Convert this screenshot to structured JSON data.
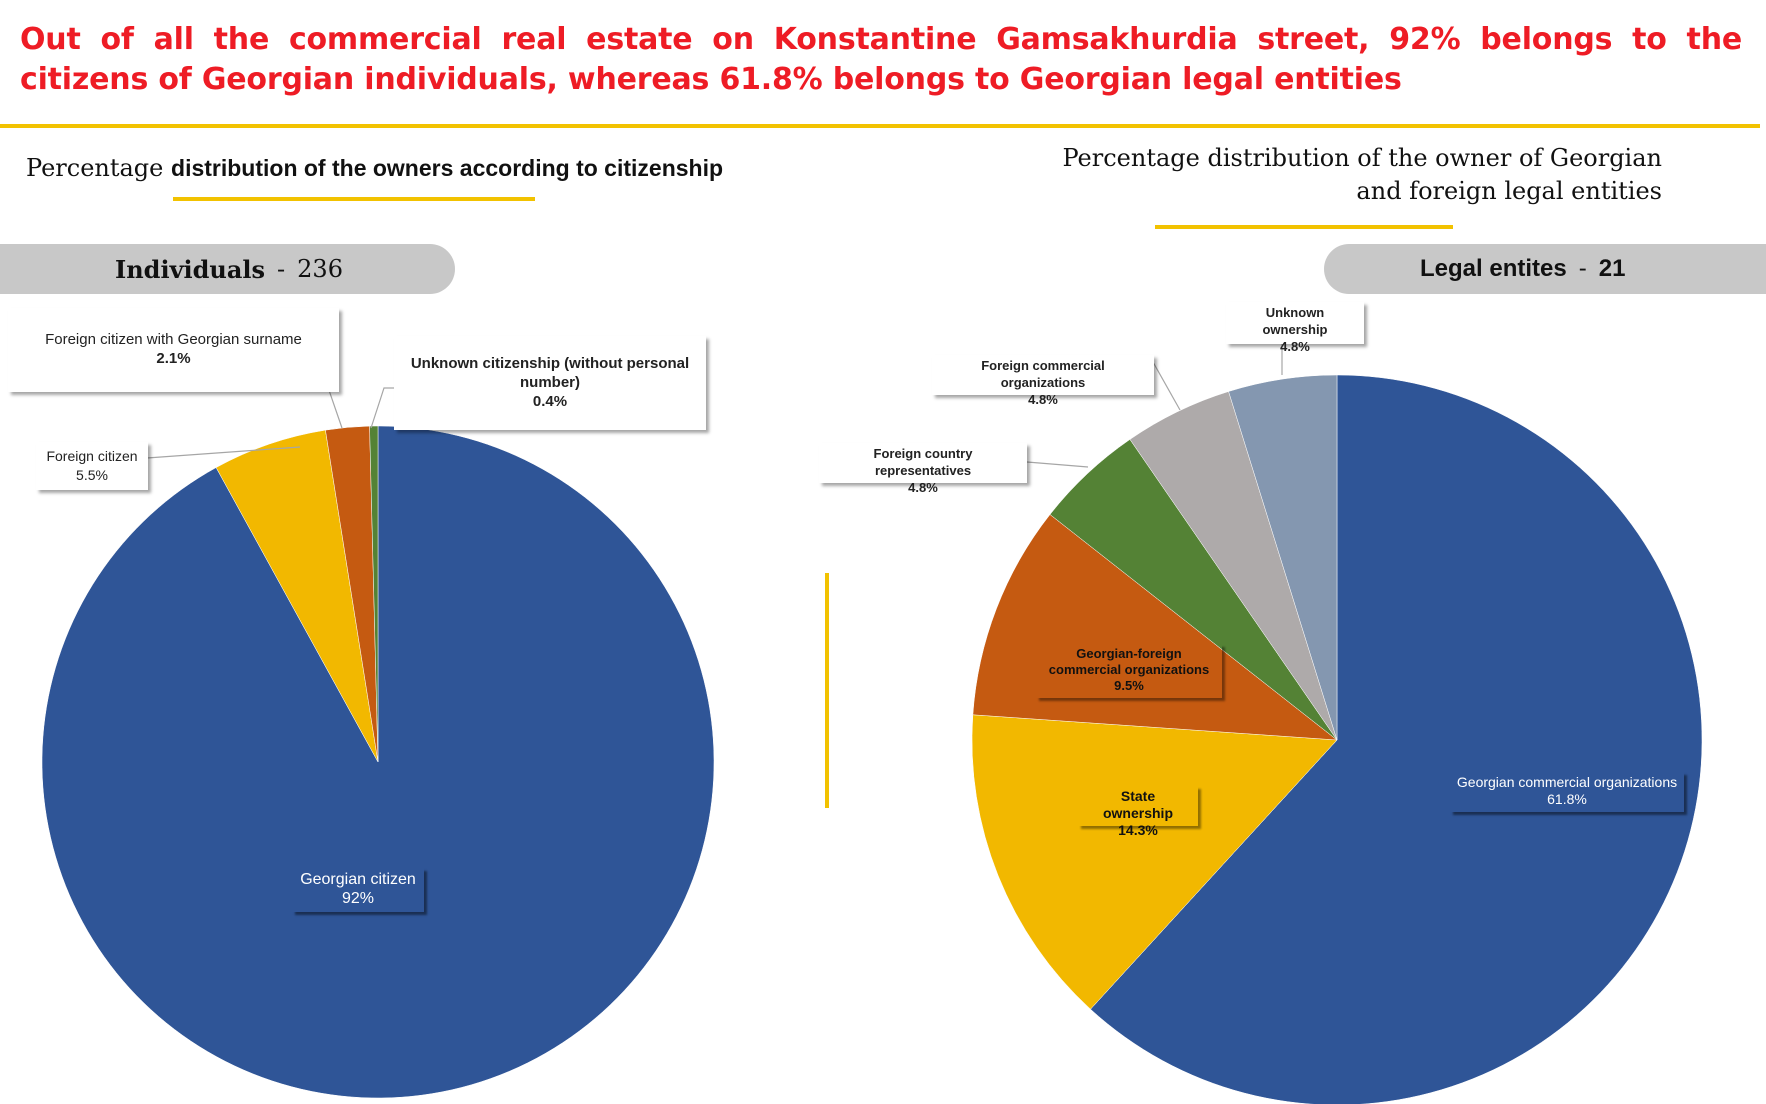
{
  "headline": "Out of all the commercial real estate on Konstantine Gamsakhurdia street, 92% belongs to the citizens of Georgian individuals, whereas 61.8% belongs to Georgian legal entities",
  "colors": {
    "accent": "#f2c200",
    "headline": "#ee1c25",
    "blue": "#2f5597",
    "yellow": "#f2b800",
    "orange": "#c55a11",
    "green": "#548235",
    "gray": "#aeaaaa",
    "slate": "#8497b0"
  },
  "chart_data": [
    {
      "type": "pie",
      "title_prefix": "Percentage",
      "title_rest": "distribution of the owners according to citizenship",
      "group_label": "Individuals",
      "group_sep": "-",
      "group_count": "236",
      "slices": [
        {
          "label": "Georgian citizen",
          "value": 92,
          "display": "92%",
          "color": "#2f5597"
        },
        {
          "label": "Foreign citizen",
          "value": 5.5,
          "display": "5.5%",
          "color": "#f2b800"
        },
        {
          "label": "Foreign citizen with Georgian surname",
          "value": 2.1,
          "display": "2.1%",
          "color": "#c55a11"
        },
        {
          "label": "Unknown citizenship (without personal number)",
          "value": 0.4,
          "display": "0.4%",
          "color": "#548235"
        }
      ]
    },
    {
      "type": "pie",
      "title_line1": "Percentage distribution of the owner of Georgian",
      "title_line2": "and foreign legal entities",
      "group_label": "Legal entites",
      "group_sep": "-",
      "group_count": "21",
      "slices": [
        {
          "label": "Georgian commercial organizations",
          "value": 61.8,
          "display": "61.8%",
          "color": "#2f5597"
        },
        {
          "label": "State ownership",
          "value": 14.3,
          "display": "14.3%",
          "color": "#f2b800"
        },
        {
          "label": "Georgian-foreign commercial organizations",
          "value": 9.5,
          "display": "9.5%",
          "color": "#c55a11"
        },
        {
          "label": "Foreign country representatives",
          "value": 4.8,
          "display": "4.8%",
          "color": "#548235"
        },
        {
          "label": "Foreign commercial organizations",
          "value": 4.8,
          "display": "4.8%",
          "color": "#aeaaaa"
        },
        {
          "label": "Unknown ownership",
          "value": 4.8,
          "display": "4.8%",
          "color": "#8497b0"
        }
      ]
    }
  ]
}
